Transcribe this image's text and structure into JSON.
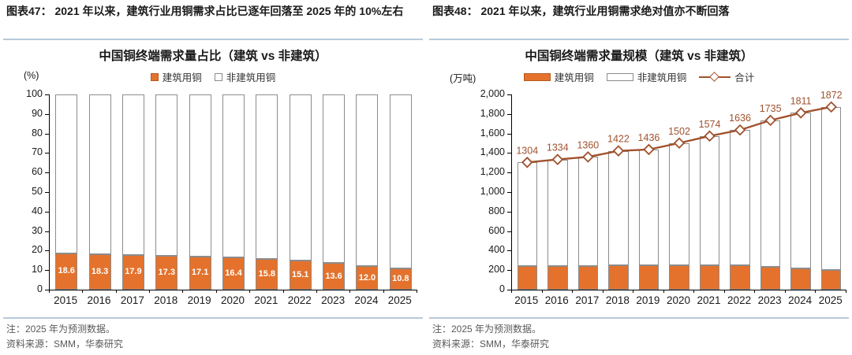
{
  "colors": {
    "bar_fill_orange": "#E4722C",
    "bar_outline_gray": "#8C8C8C",
    "line_brown": "#A0522D",
    "divider_blue": "#B7C9D9",
    "note_gray": "#595959",
    "text_black": "#1A1A1A"
  },
  "left_panel": {
    "header": "图表47： 2021 年以来，建筑行业用铜需求占比已逐年回落至 2025 年的 10%左右",
    "note": "注：2025 年为预测数据。",
    "source": "资料来源：SMM，华泰研究"
  },
  "right_panel": {
    "header": "图表48： 2021 年以来，建筑行业用铜需求绝对值亦不断回落",
    "note": "注：2025 年为预测数据。",
    "source": "资料来源：SMM，华泰研究"
  },
  "chart_data": [
    {
      "type": "bar",
      "subtype": "stacked-100-percent",
      "title": "中国铜终端需求量占比（建筑 vs 非建筑）",
      "unit_label": "(%)",
      "ylim": [
        0,
        100
      ],
      "ytick_step": 10,
      "ytick_labels": [
        "100",
        "90",
        "80",
        "70",
        "60",
        "50",
        "40",
        "30",
        "20",
        "10",
        "0"
      ],
      "legend_position": "top-center",
      "grid": false,
      "categories": [
        "2015",
        "2016",
        "2017",
        "2018",
        "2019",
        "2020",
        "2021",
        "2022",
        "2023",
        "2024",
        "2025"
      ],
      "series": [
        {
          "name": "建筑用铜",
          "role": "bar-filled",
          "values": [
            18.6,
            18.3,
            17.9,
            17.3,
            17.1,
            16.4,
            15.8,
            15.1,
            13.6,
            12.0,
            10.8
          ],
          "labels": [
            "18.6",
            "18.3",
            "17.9",
            "17.3",
            "17.1",
            "16.4",
            "15.8",
            "15.1",
            "13.6",
            "12.0",
            "10.8"
          ]
        },
        {
          "name": "非建筑用铜",
          "role": "bar-outline",
          "values": [
            81.4,
            81.7,
            82.1,
            82.7,
            82.9,
            83.6,
            84.2,
            84.9,
            86.4,
            88.0,
            89.2
          ]
        }
      ]
    },
    {
      "type": "bar+line",
      "subtype": "stacked-bars-with-total-line",
      "title": "中国铜终端需求量规模（建筑 vs 非建筑）",
      "unit_label": "(万吨)",
      "ylim": [
        0,
        2000
      ],
      "ytick_step": 200,
      "ytick_labels": [
        "2,000",
        "1,800",
        "1,600",
        "1,400",
        "1,200",
        "1,000",
        "800",
        "600",
        "400",
        "200",
        "0"
      ],
      "legend_position": "top-center",
      "grid": false,
      "categories": [
        "2015",
        "2016",
        "2017",
        "2018",
        "2019",
        "2020",
        "2021",
        "2022",
        "2023",
        "2024",
        "2025"
      ],
      "series": [
        {
          "name": "建筑用铜",
          "role": "bar-filled",
          "values": [
            243,
            244,
            243,
            246,
            246,
            246,
            249,
            247,
            236,
            217,
            202
          ]
        },
        {
          "name": "非建筑用铜",
          "role": "bar-outline",
          "values": [
            1061,
            1090,
            1117,
            1176,
            1190,
            1256,
            1325,
            1389,
            1499,
            1594,
            1670
          ]
        },
        {
          "name": "合计",
          "role": "line",
          "values": [
            1304,
            1334,
            1360,
            1422,
            1436,
            1502,
            1574,
            1636,
            1735,
            1811,
            1872
          ],
          "labels": [
            "1304",
            "1334",
            "1360",
            "1422",
            "1436",
            "1502",
            "1574",
            "1636",
            "1735",
            "1811",
            "1872"
          ]
        }
      ]
    }
  ]
}
